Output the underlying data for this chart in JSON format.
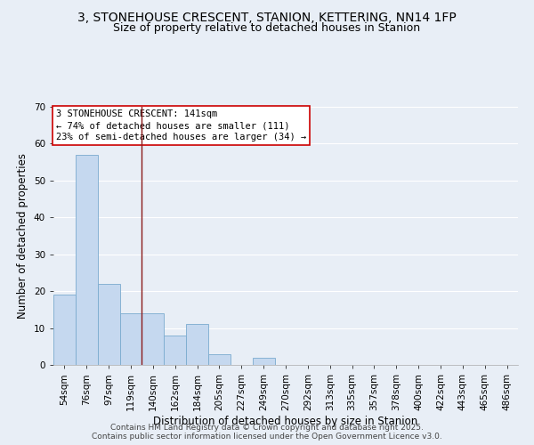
{
  "title_line1": "3, STONEHOUSE CRESCENT, STANION, KETTERING, NN14 1FP",
  "title_line2": "Size of property relative to detached houses in Stanion",
  "categories": [
    "54sqm",
    "76sqm",
    "97sqm",
    "119sqm",
    "140sqm",
    "162sqm",
    "184sqm",
    "205sqm",
    "227sqm",
    "249sqm",
    "270sqm",
    "292sqm",
    "313sqm",
    "335sqm",
    "357sqm",
    "378sqm",
    "400sqm",
    "422sqm",
    "443sqm",
    "465sqm",
    "486sqm"
  ],
  "values": [
    19,
    57,
    22,
    14,
    14,
    8,
    11,
    3,
    0,
    2,
    0,
    0,
    0,
    0,
    0,
    0,
    0,
    0,
    0,
    0,
    0
  ],
  "bar_color": "#c5d8ef",
  "bar_edge_color": "#7aabcf",
  "bg_color": "#e8eef6",
  "grid_color": "#ffffff",
  "vline_color": "#8b1a1a",
  "vline_x_index": 3.5,
  "annotation_text": "3 STONEHOUSE CRESCENT: 141sqm\n← 74% of detached houses are smaller (111)\n23% of semi-detached houses are larger (34) →",
  "annotation_box_facecolor": "#ffffff",
  "annotation_box_edgecolor": "#cc0000",
  "xlabel": "Distribution of detached houses by size in Stanion",
  "ylabel": "Number of detached properties",
  "ylim": [
    0,
    70
  ],
  "yticks": [
    0,
    10,
    20,
    30,
    40,
    50,
    60,
    70
  ],
  "footer_line1": "Contains HM Land Registry data © Crown copyright and database right 2025.",
  "footer_line2": "Contains public sector information licensed under the Open Government Licence v3.0.",
  "title_fontsize": 10,
  "subtitle_fontsize": 9,
  "axis_label_fontsize": 8.5,
  "tick_fontsize": 7.5,
  "annotation_fontsize": 7.5,
  "footer_fontsize": 6.5
}
